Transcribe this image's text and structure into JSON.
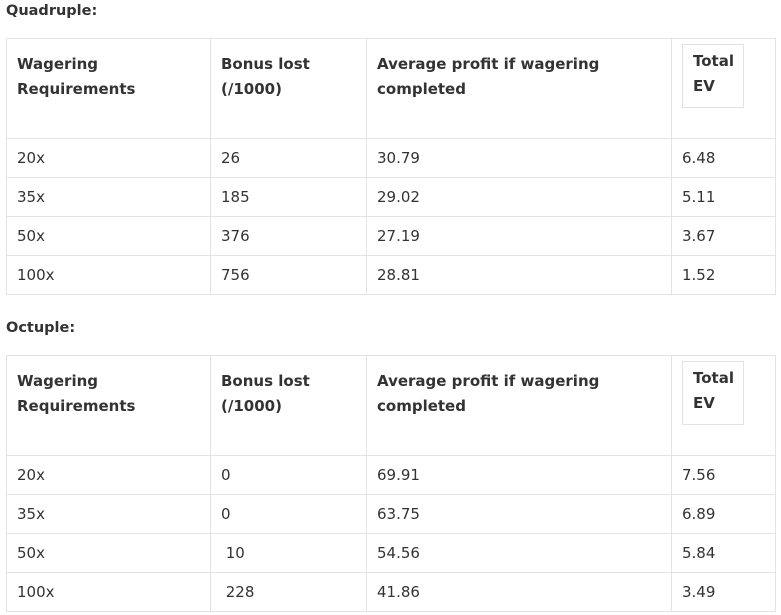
{
  "sections": [
    {
      "title": "Quadruple:",
      "headers": {
        "col1": "Wagering\nRequirements",
        "col2": "Bonus lost\n(/1000)",
        "col3": "Average profit if wagering\ncompleted",
        "col4": "Total\nEV"
      },
      "rows": [
        {
          "wagering": "20x",
          "bonus_lost": "26",
          "avg_profit": "30.79",
          "total_ev": "6.48"
        },
        {
          "wagering": "35x",
          "bonus_lost": "185",
          "avg_profit": "29.02",
          "total_ev": "5.11"
        },
        {
          "wagering": "50x",
          "bonus_lost": "376",
          "avg_profit": "27.19",
          "total_ev": "3.67"
        },
        {
          "wagering": "100x",
          "bonus_lost": "756",
          "avg_profit": "28.81",
          "total_ev": "1.52"
        }
      ]
    },
    {
      "title": "Octuple:",
      "headers": {
        "col1": "Wagering\nRequirements",
        "col2": "Bonus lost\n(/1000)",
        "col3": "Average profit if wagering\ncompleted",
        "col4": "Total\nEV"
      },
      "rows": [
        {
          "wagering": "20x",
          "bonus_lost": "0",
          "avg_profit": "69.91",
          "total_ev": "7.56"
        },
        {
          "wagering": "35x",
          "bonus_lost": "0",
          "avg_profit": "63.75",
          "total_ev": "6.89"
        },
        {
          "wagering": "50x",
          "bonus_lost": " 10",
          "avg_profit": "54.56",
          "total_ev": "5.84"
        },
        {
          "wagering": "100x",
          "bonus_lost": " 228",
          "avg_profit": "41.86",
          "total_ev": "3.49"
        }
      ]
    }
  ]
}
